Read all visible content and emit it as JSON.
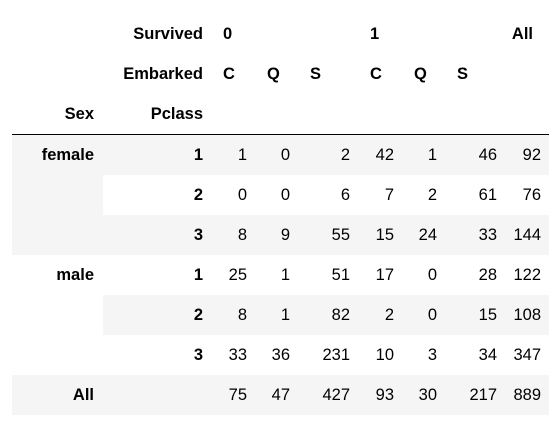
{
  "header": {
    "survived_label": "Survived",
    "embarked_label": "Embarked",
    "sex_label": "Sex",
    "pclass_label": "Pclass",
    "survived_values": [
      "0",
      "1"
    ],
    "all_label": "All",
    "embarked_values": [
      "C",
      "Q",
      "S",
      "C",
      "Q",
      "S"
    ]
  },
  "rows": [
    {
      "sex": "female",
      "pclass": "1",
      "values": [
        "1",
        "0",
        "2",
        "42",
        "1",
        "46",
        "92"
      ]
    },
    {
      "sex": "",
      "pclass": "2",
      "values": [
        "0",
        "0",
        "6",
        "7",
        "2",
        "61",
        "76"
      ]
    },
    {
      "sex": "",
      "pclass": "3",
      "values": [
        "8",
        "9",
        "55",
        "15",
        "24",
        "33",
        "144"
      ]
    },
    {
      "sex": "male",
      "pclass": "1",
      "values": [
        "25",
        "1",
        "51",
        "17",
        "0",
        "28",
        "122"
      ]
    },
    {
      "sex": "",
      "pclass": "2",
      "values": [
        "8",
        "1",
        "82",
        "2",
        "0",
        "15",
        "108"
      ]
    },
    {
      "sex": "",
      "pclass": "3",
      "values": [
        "33",
        "36",
        "231",
        "10",
        "3",
        "34",
        "347"
      ]
    }
  ],
  "totals": {
    "label": "All",
    "values": [
      "75",
      "47",
      "427",
      "93",
      "30",
      "217",
      "889"
    ]
  },
  "colors": {
    "stripe": "#f5f5f5",
    "rule": "#000000"
  }
}
